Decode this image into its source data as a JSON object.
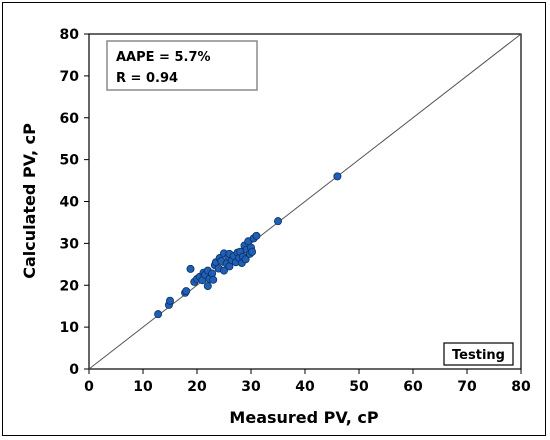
{
  "chart_data": {
    "type": "scatter",
    "title": "",
    "xlabel": "Measured PV, cP",
    "ylabel": "Calculated PV, cP",
    "xlim": [
      0,
      80
    ],
    "ylim": [
      0,
      80
    ],
    "xticks": [
      0,
      10,
      20,
      30,
      40,
      50,
      60,
      70,
      80
    ],
    "yticks": [
      0,
      10,
      20,
      30,
      40,
      50,
      60,
      70,
      80
    ],
    "grid": false,
    "reference_line": "y = x",
    "stats": [
      "AAPE = 5.7%",
      "R = 0.94"
    ],
    "tag": "Testing",
    "colors": {
      "point": "#1f5fb4",
      "point_edge": "#0a2f66",
      "line": "#555555"
    },
    "series": [
      {
        "values": [
          [
            12.8,
            13.1
          ],
          [
            14.8,
            15.3
          ],
          [
            15.0,
            16.3
          ],
          [
            17.8,
            18.2
          ],
          [
            18.0,
            18.6
          ],
          [
            18.8,
            23.9
          ],
          [
            19.5,
            20.8
          ],
          [
            20.0,
            21.5
          ],
          [
            20.5,
            22.0
          ],
          [
            21.0,
            21.2
          ],
          [
            21.2,
            23.0
          ],
          [
            21.5,
            22.5
          ],
          [
            22.0,
            19.8
          ],
          [
            22.0,
            23.5
          ],
          [
            22.3,
            21.5
          ],
          [
            22.8,
            22.8
          ],
          [
            23.0,
            21.3
          ],
          [
            23.3,
            24.8
          ],
          [
            23.5,
            25.5
          ],
          [
            24.0,
            24.0
          ],
          [
            24.2,
            26.5
          ],
          [
            24.5,
            25.8
          ],
          [
            25.0,
            27.6
          ],
          [
            25.0,
            23.5
          ],
          [
            25.5,
            25.2
          ],
          [
            25.8,
            26.8
          ],
          [
            26.0,
            27.5
          ],
          [
            26.0,
            24.5
          ],
          [
            26.5,
            26.0
          ],
          [
            26.8,
            27.0
          ],
          [
            27.2,
            25.5
          ],
          [
            27.5,
            27.8
          ],
          [
            27.8,
            26.5
          ],
          [
            28.0,
            28.0
          ],
          [
            28.3,
            25.3
          ],
          [
            28.5,
            26.8
          ],
          [
            28.8,
            29.5
          ],
          [
            29.0,
            26.2
          ],
          [
            29.2,
            28.5
          ],
          [
            29.5,
            30.5
          ],
          [
            29.8,
            27.5
          ],
          [
            30.0,
            29.0
          ],
          [
            30.2,
            28.0
          ],
          [
            30.5,
            31.2
          ],
          [
            31.0,
            31.8
          ],
          [
            35.0,
            35.3
          ],
          [
            46.0,
            46.0
          ]
        ]
      }
    ]
  }
}
